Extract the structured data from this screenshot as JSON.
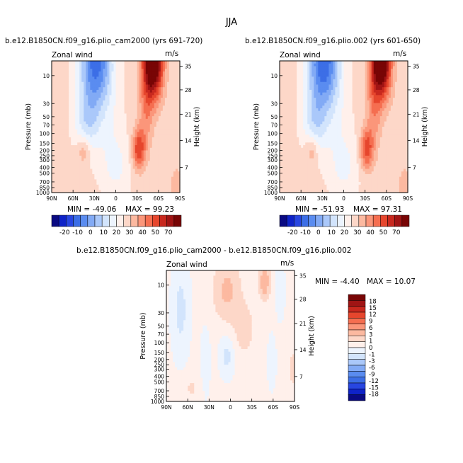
{
  "main_title": "JJA",
  "colors": {
    "neg": [
      "#0a0a82",
      "#0f23c8",
      "#2846e1",
      "#3c6ee6",
      "#5a8cf0",
      "#82aaf5",
      "#aac8fa",
      "#d2e4fc",
      "#edf4fe"
    ],
    "pos": [
      "#fff0eb",
      "#fdd7c8",
      "#fcb9a0",
      "#fb967a",
      "#f56e50",
      "#e6462d",
      "#c8281e",
      "#a01414",
      "#780505"
    ]
  },
  "chart_data": [
    {
      "type": "heatmap",
      "title": "b.e12.B1850CN.f09_g16.plio_cam2000 (yrs 691-720)",
      "left_label": "Zonal wind",
      "right_label": "m/s",
      "xlabel": "",
      "ylabel": "Pressure (mb)",
      "ylabel_right": "Height (km)",
      "xticks": [
        "90N",
        "60N",
        "30N",
        "0",
        "30S",
        "60S",
        "90S"
      ],
      "yticks": [
        "10",
        "30",
        "50",
        "70",
        "100",
        "150",
        "200",
        "250",
        "300",
        "400",
        "500",
        "700",
        "850",
        "1000"
      ],
      "height_ticks": [
        "35",
        "28",
        "21",
        "14",
        "7"
      ],
      "stats": {
        "min_label": "MIN = ",
        "min": "-49.06",
        "max_label": "MAX = ",
        "max": "99.23"
      },
      "scale": 80,
      "features": {
        "easterly_core": -49.06,
        "westerly_jet_strat": 99.23,
        "westerly_jet_trop": 40,
        "nh_jet": 18
      },
      "colorbar": {
        "labels": [
          "-20",
          "-10",
          "0",
          "10",
          "20",
          "30",
          "40",
          "50",
          "70"
        ]
      }
    },
    {
      "type": "heatmap",
      "title": "b.e12.B1850CN.f09_g16.plio.002 (yrs 601-650)",
      "left_label": "Zonal wind",
      "right_label": "m/s",
      "xlabel": "",
      "ylabel": "Pressure (mb)",
      "ylabel_right": "Height (km)",
      "xticks": [
        "90N",
        "60N",
        "30N",
        "0",
        "30S",
        "60S",
        "90S"
      ],
      "yticks": [
        "10",
        "30",
        "50",
        "70",
        "100",
        "150",
        "200",
        "250",
        "300",
        "400",
        "500",
        "700",
        "850",
        "1000"
      ],
      "height_ticks": [
        "35",
        "28",
        "21",
        "14",
        "7"
      ],
      "stats": {
        "min_label": "MIN = ",
        "min": "-51.93",
        "max_label": "MAX = ",
        "max": "97.31"
      },
      "scale": 80,
      "features": {
        "easterly_core": -51.93,
        "westerly_jet_strat": 97.31,
        "westerly_jet_trop": 38,
        "nh_jet": 17
      },
      "colorbar": {
        "labels": [
          "-20",
          "-10",
          "0",
          "10",
          "20",
          "30",
          "40",
          "50",
          "70"
        ]
      }
    },
    {
      "type": "heatmap",
      "title": "b.e12.B1850CN.f09_g16.plio_cam2000 - b.e12.B1850CN.f09_g16.plio.002",
      "left_label": "Zonal wind",
      "right_label": "m/s",
      "xlabel": "",
      "ylabel": "Pressure (mb)",
      "ylabel_right": "Height (km)",
      "xticks": [
        "90N",
        "60N",
        "30N",
        "0",
        "30S",
        "60S",
        "90S"
      ],
      "yticks": [
        "10",
        "30",
        "50",
        "70",
        "100",
        "150",
        "200",
        "250",
        "300",
        "400",
        "500",
        "700",
        "850",
        "1000"
      ],
      "height_ticks": [
        "35",
        "28",
        "21",
        "14",
        "7"
      ],
      "stats": {
        "min_label": "MIN = ",
        "min": "-4.40",
        "max_label": "MAX = ",
        "max": "10.07"
      },
      "scale": 20,
      "colorbar": {
        "labels": [
          "18",
          "15",
          "12",
          "9",
          "6",
          "3",
          "1",
          "0",
          "-1",
          "-3",
          "-6",
          "-9",
          "-12",
          "-15",
          "-18"
        ]
      }
    }
  ]
}
